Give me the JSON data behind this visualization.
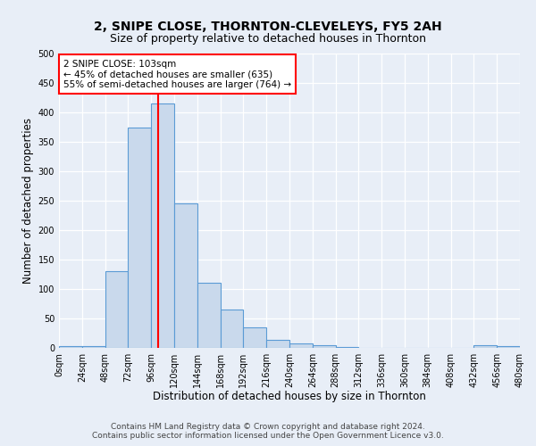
{
  "title": "2, SNIPE CLOSE, THORNTON-CLEVELEYS, FY5 2AH",
  "subtitle": "Size of property relative to detached houses in Thornton",
  "xlabel": "Distribution of detached houses by size in Thornton",
  "ylabel": "Number of detached properties",
  "bar_left_edges": [
    0,
    24,
    48,
    72,
    96,
    120,
    144,
    168,
    192,
    216,
    240,
    264,
    288,
    312,
    336,
    360,
    384,
    408,
    432,
    456
  ],
  "bar_heights": [
    3,
    3,
    130,
    375,
    415,
    245,
    110,
    65,
    35,
    14,
    8,
    5,
    2,
    0,
    0,
    0,
    0,
    0,
    5,
    3
  ],
  "bin_width": 24,
  "bar_color": "#c9d9ec",
  "bar_edge_color": "#5b9bd5",
  "vline_x": 103,
  "vline_color": "red",
  "annotation_line1": "2 SNIPE CLOSE: 103sqm",
  "annotation_line2": "← 45% of detached houses are smaller (635)",
  "annotation_line3": "55% of semi-detached houses are larger (764) →",
  "annotation_box_color": "red",
  "annotation_box_fill": "white",
  "ylim": [
    0,
    500
  ],
  "yticks": [
    0,
    50,
    100,
    150,
    200,
    250,
    300,
    350,
    400,
    450,
    500
  ],
  "xtick_labels": [
    "0sqm",
    "24sqm",
    "48sqm",
    "72sqm",
    "96sqm",
    "120sqm",
    "144sqm",
    "168sqm",
    "192sqm",
    "216sqm",
    "240sqm",
    "264sqm",
    "288sqm",
    "312sqm",
    "336sqm",
    "360sqm",
    "384sqm",
    "408sqm",
    "432sqm",
    "456sqm",
    "480sqm"
  ],
  "xtick_positions": [
    0,
    24,
    48,
    72,
    96,
    120,
    144,
    168,
    192,
    216,
    240,
    264,
    288,
    312,
    336,
    360,
    384,
    408,
    432,
    456,
    480
  ],
  "footnote1": "Contains HM Land Registry data © Crown copyright and database right 2024.",
  "footnote2": "Contains public sector information licensed under the Open Government Licence v3.0.",
  "bg_color": "#e8eef7",
  "plot_bg_color": "#e8eef7",
  "grid_color": "white",
  "title_fontsize": 10,
  "subtitle_fontsize": 9,
  "axis_label_fontsize": 8.5,
  "tick_fontsize": 7,
  "footnote_fontsize": 6.5
}
